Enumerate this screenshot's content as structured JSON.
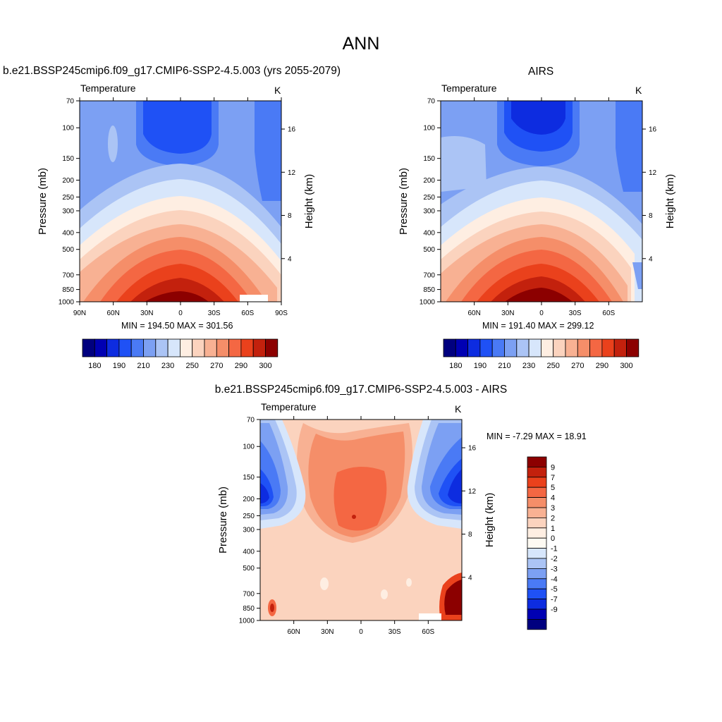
{
  "page_title": "ANN",
  "colors": {
    "abs_scale": [
      "#00007f",
      "#0000b3",
      "#0d2ce0",
      "#1f51f5",
      "#4a7af5",
      "#7ca0f3",
      "#abc4f5",
      "#d7e6fb",
      "#feeee2",
      "#fbd3be",
      "#f8b193",
      "#f58e69",
      "#f46743",
      "#ea411c",
      "#c3210d",
      "#8c0000"
    ],
    "diff_scale": [
      "#00007f",
      "#0000b3",
      "#0d2ce0",
      "#1f51f5",
      "#4a7af5",
      "#7ca0f3",
      "#abc4f5",
      "#d7e6fb",
      "#fefaf2",
      "#feeee2",
      "#fbd3be",
      "#f8b193",
      "#f58e69",
      "#f46743",
      "#ea411c",
      "#c3210d",
      "#8c0000"
    ]
  },
  "chart_data": [
    {
      "type": "contour",
      "panel": "model",
      "title": "b.e21.BSSP245cmip6.f09_g17.CMIP6-SSP2-4.5.003 (yrs 2055-2079)",
      "left_label": "Temperature",
      "right_label": "K",
      "ylabel": "Pressure (mb)",
      "ylabel_right": "Height (km)",
      "x_ticks": [
        "90N",
        "60N",
        "30N",
        "0",
        "30S",
        "60S",
        "90S"
      ],
      "y_ticks": [
        "70",
        "100",
        "150",
        "200",
        "250",
        "300",
        "400",
        "500",
        "700",
        "850",
        "1000"
      ],
      "height_ticks": [
        "16",
        "12",
        "8",
        "4"
      ],
      "min_max": "MIN = 194.50  MAX = 301.56",
      "colorbar_labels": [
        "180",
        "190",
        "210",
        "230",
        "250",
        "270",
        "290",
        "300"
      ],
      "xlim": [
        90,
        -90
      ],
      "ylim": [
        70,
        1000
      ],
      "y_scale": "log"
    },
    {
      "type": "contour",
      "panel": "obs",
      "title": "AIRS",
      "left_label": "Temperature",
      "right_label": "K",
      "ylabel": "Pressure (mb)",
      "ylabel_right": "Height (km)",
      "x_ticks": [
        "60N",
        "30N",
        "0",
        "30S",
        "60S"
      ],
      "y_ticks": [
        "70",
        "100",
        "150",
        "200",
        "250",
        "300",
        "400",
        "500",
        "700",
        "850",
        "1000"
      ],
      "height_ticks": [
        "16",
        "12",
        "8",
        "4"
      ],
      "min_max": "MIN = 191.40  MAX = 299.12",
      "colorbar_labels": [
        "180",
        "190",
        "210",
        "230",
        "250",
        "270",
        "290",
        "300"
      ],
      "xlim": [
        90,
        -90
      ],
      "ylim": [
        70,
        1000
      ],
      "y_scale": "log"
    },
    {
      "type": "contour",
      "panel": "diff",
      "title": "b.e21.BSSP245cmip6.f09_g17.CMIP6-SSP2-4.5.003 - AIRS",
      "left_label": "Temperature",
      "right_label": "K",
      "ylabel": "Pressure (mb)",
      "ylabel_right": "Height (km)",
      "x_ticks": [
        "60N",
        "30N",
        "0",
        "30S",
        "60S"
      ],
      "y_ticks": [
        "70",
        "100",
        "150",
        "200",
        "250",
        "300",
        "400",
        "500",
        "700",
        "850",
        "1000"
      ],
      "height_ticks": [
        "16",
        "12",
        "8",
        "4"
      ],
      "min_max": "MIN =  -7.29  MAX =  18.91",
      "colorbar_labels": [
        "9",
        "7",
        "5",
        "4",
        "3",
        "2",
        "1",
        "0",
        "-1",
        "-2",
        "-3",
        "-4",
        "-5",
        "-7",
        "-9"
      ],
      "xlim": [
        90,
        -90
      ],
      "ylim": [
        70,
        1000
      ],
      "y_scale": "log"
    }
  ]
}
